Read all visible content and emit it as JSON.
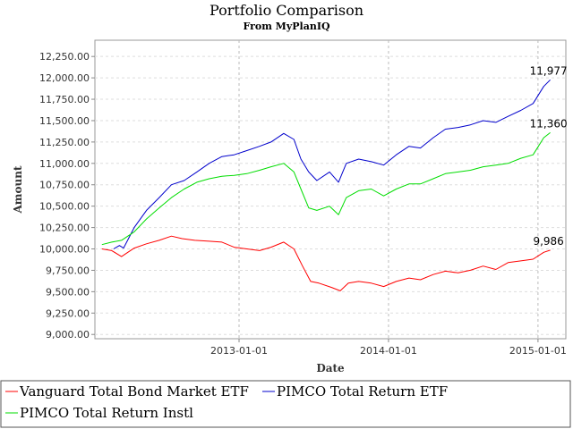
{
  "chart_data": {
    "type": "line",
    "title": "Portfolio Comparison",
    "subtitle": "From MyPlanIQ",
    "xlabel": "Date",
    "ylabel": "Amount",
    "ylim": [
      8950,
      12440
    ],
    "xlim": [
      "2012-01-15",
      "2015-03-10"
    ],
    "yticks": [
      9000,
      9250,
      9500,
      9750,
      10000,
      10250,
      10500,
      10750,
      11000,
      11250,
      11500,
      11750,
      12000,
      12250
    ],
    "ytick_labels": [
      "9,000.00",
      "9,250.00",
      "9,500.00",
      "9,750.00",
      "10,000.00",
      "10,250.00",
      "10,500.00",
      "10,750.00",
      "11,000.00",
      "11,250.00",
      "11,500.00",
      "11,750.00",
      "12,000.00",
      "12,250.00"
    ],
    "xticks": [
      "2013-01-01",
      "2014-01-01",
      "2015-01-01"
    ],
    "xtick_labels": [
      "2013-01-01",
      "2014-01-01",
      "2015-01-01"
    ],
    "grid": true,
    "legend_position": "bottom",
    "series": [
      {
        "name": "Vanguard Total Bond Market ETF",
        "color": "#ff0000",
        "end_label": "9,986",
        "points": [
          [
            "2012-02-01",
            10000
          ],
          [
            "2012-02-25",
            9980
          ],
          [
            "2012-03-20",
            9910
          ],
          [
            "2012-04-20",
            10010
          ],
          [
            "2012-05-20",
            10060
          ],
          [
            "2012-06-20",
            10100
          ],
          [
            "2012-07-20",
            10150
          ],
          [
            "2012-08-15",
            10120
          ],
          [
            "2012-09-15",
            10100
          ],
          [
            "2012-10-20",
            10090
          ],
          [
            "2012-11-20",
            10080
          ],
          [
            "2012-12-20",
            10020
          ],
          [
            "2013-01-20",
            10000
          ],
          [
            "2013-02-20",
            9980
          ],
          [
            "2013-03-20",
            10020
          ],
          [
            "2013-04-20",
            10080
          ],
          [
            "2013-05-15",
            10000
          ],
          [
            "2013-06-05",
            9800
          ],
          [
            "2013-06-25",
            9620
          ],
          [
            "2013-07-15",
            9600
          ],
          [
            "2013-08-15",
            9550
          ],
          [
            "2013-09-05",
            9510
          ],
          [
            "2013-09-25",
            9600
          ],
          [
            "2013-10-20",
            9620
          ],
          [
            "2013-11-20",
            9600
          ],
          [
            "2013-12-20",
            9560
          ],
          [
            "2014-01-20",
            9620
          ],
          [
            "2014-02-20",
            9660
          ],
          [
            "2014-03-20",
            9640
          ],
          [
            "2014-04-20",
            9700
          ],
          [
            "2014-05-20",
            9740
          ],
          [
            "2014-06-20",
            9720
          ],
          [
            "2014-07-20",
            9750
          ],
          [
            "2014-08-20",
            9800
          ],
          [
            "2014-09-20",
            9760
          ],
          [
            "2014-10-20",
            9840
          ],
          [
            "2014-11-20",
            9860
          ],
          [
            "2014-12-20",
            9880
          ],
          [
            "2015-01-15",
            9960
          ],
          [
            "2015-01-31",
            9986
          ]
        ]
      },
      {
        "name": "PIMCO Total Return ETF",
        "color": "#0000cc",
        "end_label": "11,977",
        "points": [
          [
            "2012-03-01",
            10000
          ],
          [
            "2012-03-15",
            10040
          ],
          [
            "2012-03-25",
            10010
          ],
          [
            "2012-04-20",
            10250
          ],
          [
            "2012-05-20",
            10450
          ],
          [
            "2012-06-20",
            10600
          ],
          [
            "2012-07-20",
            10750
          ],
          [
            "2012-08-20",
            10800
          ],
          [
            "2012-09-20",
            10900
          ],
          [
            "2012-10-20",
            11000
          ],
          [
            "2012-11-20",
            11080
          ],
          [
            "2012-12-20",
            11100
          ],
          [
            "2013-01-20",
            11150
          ],
          [
            "2013-02-20",
            11200
          ],
          [
            "2013-03-20",
            11250
          ],
          [
            "2013-04-20",
            11350
          ],
          [
            "2013-05-15",
            11280
          ],
          [
            "2013-06-01",
            11050
          ],
          [
            "2013-06-20",
            10900
          ],
          [
            "2013-07-10",
            10800
          ],
          [
            "2013-08-10",
            10900
          ],
          [
            "2013-09-01",
            10780
          ],
          [
            "2013-09-20",
            11000
          ],
          [
            "2013-10-20",
            11050
          ],
          [
            "2013-11-20",
            11020
          ],
          [
            "2013-12-20",
            10980
          ],
          [
            "2014-01-20",
            11100
          ],
          [
            "2014-02-20",
            11200
          ],
          [
            "2014-03-20",
            11180
          ],
          [
            "2014-04-20",
            11300
          ],
          [
            "2014-05-20",
            11400
          ],
          [
            "2014-06-20",
            11420
          ],
          [
            "2014-07-20",
            11450
          ],
          [
            "2014-08-20",
            11500
          ],
          [
            "2014-09-20",
            11480
          ],
          [
            "2014-10-20",
            11550
          ],
          [
            "2014-11-20",
            11620
          ],
          [
            "2014-12-20",
            11700
          ],
          [
            "2015-01-15",
            11900
          ],
          [
            "2015-01-31",
            11977
          ]
        ]
      },
      {
        "name": "PIMCO Total Return Instl",
        "color": "#00dd00",
        "end_label": "11,360",
        "points": [
          [
            "2012-02-01",
            10050
          ],
          [
            "2012-02-25",
            10080
          ],
          [
            "2012-03-20",
            10100
          ],
          [
            "2012-04-20",
            10200
          ],
          [
            "2012-05-20",
            10350
          ],
          [
            "2012-06-20",
            10480
          ],
          [
            "2012-07-20",
            10600
          ],
          [
            "2012-08-20",
            10700
          ],
          [
            "2012-09-20",
            10780
          ],
          [
            "2012-10-20",
            10820
          ],
          [
            "2012-11-20",
            10850
          ],
          [
            "2012-12-20",
            10860
          ],
          [
            "2013-01-20",
            10880
          ],
          [
            "2013-02-20",
            10920
          ],
          [
            "2013-03-20",
            10960
          ],
          [
            "2013-04-20",
            11000
          ],
          [
            "2013-05-15",
            10900
          ],
          [
            "2013-06-01",
            10700
          ],
          [
            "2013-06-20",
            10480
          ],
          [
            "2013-07-10",
            10450
          ],
          [
            "2013-08-10",
            10500
          ],
          [
            "2013-09-01",
            10400
          ],
          [
            "2013-09-20",
            10600
          ],
          [
            "2013-10-20",
            10680
          ],
          [
            "2013-11-20",
            10700
          ],
          [
            "2013-12-20",
            10620
          ],
          [
            "2014-01-20",
            10700
          ],
          [
            "2014-02-20",
            10760
          ],
          [
            "2014-03-20",
            10760
          ],
          [
            "2014-04-20",
            10820
          ],
          [
            "2014-05-20",
            10880
          ],
          [
            "2014-06-20",
            10900
          ],
          [
            "2014-07-20",
            10920
          ],
          [
            "2014-08-20",
            10960
          ],
          [
            "2014-09-20",
            10980
          ],
          [
            "2014-10-20",
            11000
          ],
          [
            "2014-11-20",
            11060
          ],
          [
            "2014-12-20",
            11100
          ],
          [
            "2015-01-15",
            11300
          ],
          [
            "2015-01-31",
            11360
          ]
        ]
      }
    ]
  }
}
